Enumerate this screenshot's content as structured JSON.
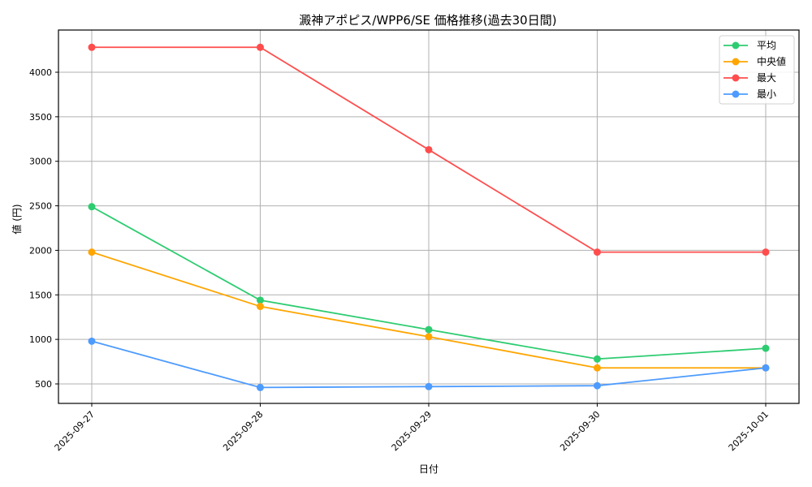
{
  "chart_data": {
    "type": "line",
    "title": "澱神アポピス/WPP6/SE 価格推移(過去30日間)",
    "xlabel": "日付",
    "ylabel": "値 (円)",
    "categories": [
      "2025-09-27",
      "2025-09-28",
      "2025-09-29",
      "2025-09-30",
      "2025-10-01"
    ],
    "series": [
      {
        "name": "平均",
        "color": "#2ecc71",
        "values": [
          2490,
          1440,
          1110,
          780,
          900
        ]
      },
      {
        "name": "中央値",
        "color": "#ffa500",
        "values": [
          1980,
          1370,
          1030,
          680,
          680
        ]
      },
      {
        "name": "最大",
        "color": "#ff4d4d",
        "values": [
          4280,
          4280,
          3130,
          1980,
          1980
        ]
      },
      {
        "name": "最小",
        "color": "#4d9bff",
        "values": [
          980,
          460,
          470,
          480,
          680
        ]
      }
    ],
    "yticks": [
      500,
      1000,
      1500,
      2000,
      2500,
      3000,
      3500,
      4000
    ],
    "ylim": [
      270,
      4470
    ],
    "grid": true,
    "legend_position": "upper right",
    "marker": "circle"
  }
}
